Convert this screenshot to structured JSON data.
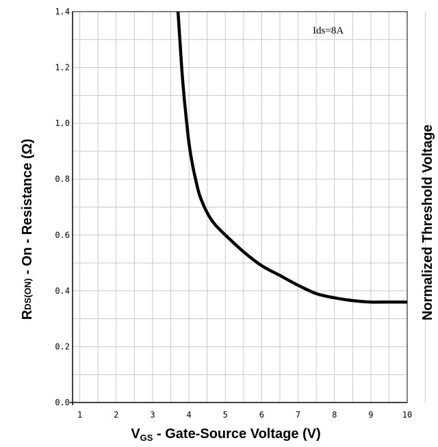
{
  "chart_data": {
    "type": "line",
    "x": [
      3.7,
      3.75,
      3.8,
      3.85,
      3.9,
      4.0,
      4.1,
      4.2,
      4.3,
      4.5,
      4.7,
      5.0,
      5.5,
      6.0,
      6.5,
      7.0,
      7.5,
      8.0,
      8.5,
      9.0,
      9.5,
      10.0
    ],
    "y": [
      1.4,
      1.3,
      1.2,
      1.12,
      1.05,
      0.93,
      0.85,
      0.79,
      0.74,
      0.68,
      0.64,
      0.6,
      0.54,
      0.49,
      0.455,
      0.42,
      0.39,
      0.375,
      0.365,
      0.36,
      0.36,
      0.36
    ],
    "xlim": [
      0.8,
      10.0
    ],
    "ylim": [
      0.0,
      1.4
    ],
    "x_ticks": [
      "1",
      "2",
      "3",
      "4",
      "5",
      "6",
      "7",
      "8",
      "9",
      "10"
    ],
    "y_ticks": [
      "0.0",
      "0.2",
      "0.4",
      "0.6",
      "0.8",
      "1.0",
      "1.2",
      "1.4"
    ],
    "grid": true,
    "annotation": "Ids=8A",
    "xlabel": {
      "main": "V",
      "sub": "GS",
      "rest": " - Gate-Source Voltage (V)"
    },
    "ylabel": {
      "main": "R",
      "sub": "DS(ON)",
      "rest": " - On - Resistance (Ω)"
    },
    "y2label": "Normalized Threshold Voltage",
    "line_color": "#000000",
    "grid_color": "#c8c8c8"
  }
}
